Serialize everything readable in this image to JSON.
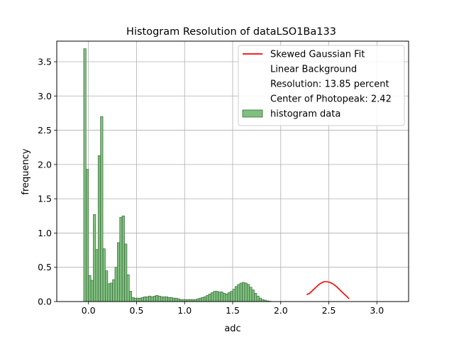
{
  "chart_data": {
    "type": "bar",
    "title": "Histogram Resolution of dataLSO1Ba133",
    "xlabel": "adc",
    "ylabel": "frequency",
    "xlim": [
      -0.33,
      3.33
    ],
    "ylim": [
      0,
      3.8
    ],
    "xticks": [
      {
        "value": 0.0,
        "label": "0.0"
      },
      {
        "value": 0.5,
        "label": "0.5"
      },
      {
        "value": 1.0,
        "label": "1.0"
      },
      {
        "value": 1.5,
        "label": "1.5"
      },
      {
        "value": 2.0,
        "label": "2.0"
      },
      {
        "value": 2.5,
        "label": "2.5"
      },
      {
        "value": 3.0,
        "label": "3.0"
      }
    ],
    "yticks": [
      {
        "value": 0.0,
        "label": "0.0"
      },
      {
        "value": 0.5,
        "label": "0.5"
      },
      {
        "value": 1.0,
        "label": "1.0"
      },
      {
        "value": 1.5,
        "label": "1.5"
      },
      {
        "value": 2.0,
        "label": "2.0"
      },
      {
        "value": 2.5,
        "label": "2.5"
      },
      {
        "value": 3.0,
        "label": "3.0"
      },
      {
        "value": 3.5,
        "label": "3.5"
      }
    ],
    "grid": true,
    "legend_position": "top-right",
    "legend": [
      {
        "label": "Skewed Gaussian Fit",
        "marker": "line",
        "color": "#ff0000"
      },
      {
        "label": "Linear Background",
        "marker": "none"
      },
      {
        "label": "Resolution: 13.85 percent",
        "marker": "none"
      },
      {
        "label": "Center of Photopeak: 2.42",
        "marker": "none"
      },
      {
        "label": "histogram data",
        "marker": "patch",
        "color": "#7fbf7f"
      }
    ],
    "histogram": {
      "name": "histogram data",
      "bin_start": -0.05,
      "bin_width": 0.025,
      "color": "#7fbf7f",
      "edge_color": "#3a6b3a",
      "values": [
        3.69,
        1.93,
        0.38,
        0.31,
        1.27,
        0.76,
        2.13,
        2.7,
        0.77,
        0.45,
        0.26,
        0.27,
        0.32,
        0.5,
        0.86,
        1.23,
        1.25,
        0.84,
        0.39,
        0.15,
        0.06,
        0.05,
        0.05,
        0.05,
        0.06,
        0.07,
        0.07,
        0.08,
        0.07,
        0.08,
        0.09,
        0.08,
        0.07,
        0.07,
        0.07,
        0.06,
        0.06,
        0.05,
        0.05,
        0.04,
        0.03,
        0.03,
        0.03,
        0.03,
        0.03,
        0.03,
        0.03,
        0.04,
        0.05,
        0.06,
        0.07,
        0.09,
        0.11,
        0.13,
        0.15,
        0.15,
        0.14,
        0.14,
        0.12,
        0.11,
        0.13,
        0.15,
        0.18,
        0.22,
        0.25,
        0.27,
        0.28,
        0.27,
        0.25,
        0.21,
        0.17,
        0.12,
        0.08,
        0.05,
        0.03,
        0.02,
        0.01,
        0.005,
        0.0,
        0.0
      ]
    },
    "fit": {
      "name": "Skewed Gaussian Fit",
      "color": "#ff0000",
      "x": [
        2.27,
        2.3,
        2.33,
        2.36,
        2.39,
        2.42,
        2.45,
        2.48,
        2.51,
        2.54,
        2.57,
        2.6,
        2.63,
        2.66,
        2.69,
        2.71
      ],
      "y": [
        0.1,
        0.12,
        0.16,
        0.2,
        0.24,
        0.27,
        0.29,
        0.29,
        0.28,
        0.26,
        0.23,
        0.19,
        0.15,
        0.11,
        0.07,
        0.04
      ]
    }
  }
}
